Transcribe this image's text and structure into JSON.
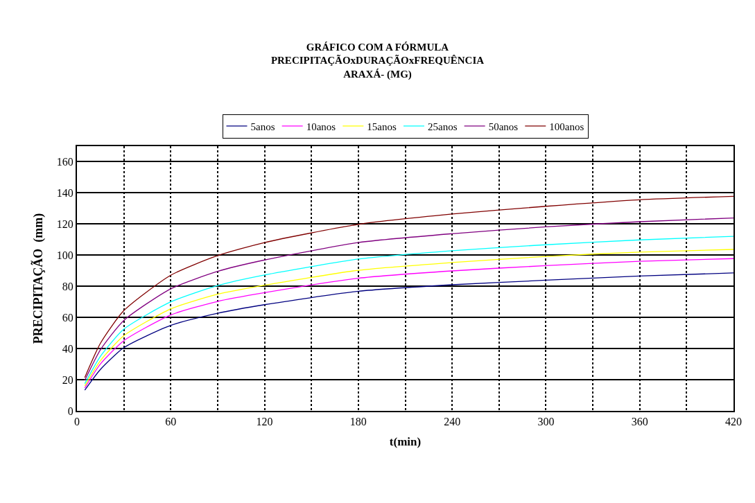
{
  "chart_data": {
    "type": "line",
    "title": "GRÁFICO COM A FÓRMULA\nPRECIPITAÇÃOxDURAÇÃOxFREQUÊNCIA\nARAXÁ- (MG)",
    "xlabel": "t(min)",
    "ylabel": "PRECIPITAÇÃO  (mm)",
    "x": [
      5,
      15,
      30,
      60,
      90,
      120,
      180,
      240,
      300,
      360,
      420
    ],
    "series": [
      {
        "name": "5anos",
        "color": "#000080",
        "values": [
          13.3,
          26.6,
          40.6,
          54.9,
          62.7,
          68.2,
          76.8,
          81.0,
          83.9,
          86.6,
          88.6
        ]
      },
      {
        "name": "10anos",
        "color": "#ff00ff",
        "values": [
          14.7,
          30.1,
          45.1,
          61.6,
          70.3,
          75.9,
          85.2,
          89.9,
          93.3,
          96.1,
          97.8
        ]
      },
      {
        "name": "15anos",
        "color": "#ffff00",
        "values": [
          16.1,
          32.2,
          48.3,
          65.5,
          74.9,
          80.7,
          90.3,
          95.3,
          99.2,
          102.0,
          103.7
        ]
      },
      {
        "name": "25anos",
        "color": "#00ffff",
        "values": [
          17.5,
          35.0,
          52.5,
          70.0,
          80.5,
          87.3,
          97.5,
          102.9,
          106.7,
          109.8,
          112.1
        ]
      },
      {
        "name": "50anos",
        "color": "#800080",
        "values": [
          19.6,
          39.2,
          58.1,
          78.4,
          89.6,
          96.9,
          108.1,
          113.8,
          118.2,
          121.5,
          123.9
        ]
      },
      {
        "name": "100anos",
        "color": "#800000",
        "values": [
          21.4,
          43.4,
          64.4,
          87.1,
          99.7,
          108.1,
          119.8,
          126.4,
          131.4,
          135.6,
          137.8
        ]
      }
    ],
    "xlim": [
      0,
      420
    ],
    "xticks": [
      0,
      {
        "value": 30,
        "label": null
      },
      60,
      {
        "value": 90,
        "label": null
      },
      120,
      {
        "value": 150,
        "label": null
      },
      180,
      {
        "value": 210,
        "label": null
      },
      240,
      {
        "value": 270,
        "label": null
      },
      300,
      {
        "value": 330,
        "label": null
      },
      360,
      {
        "value": 390,
        "label": null
      },
      420
    ],
    "ylim": [
      0,
      170
    ],
    "yticks": [
      0,
      20,
      40,
      60,
      80,
      100,
      120,
      140,
      160
    ],
    "grid": true,
    "legend": "top",
    "marker": "none",
    "line_style": "solid"
  }
}
